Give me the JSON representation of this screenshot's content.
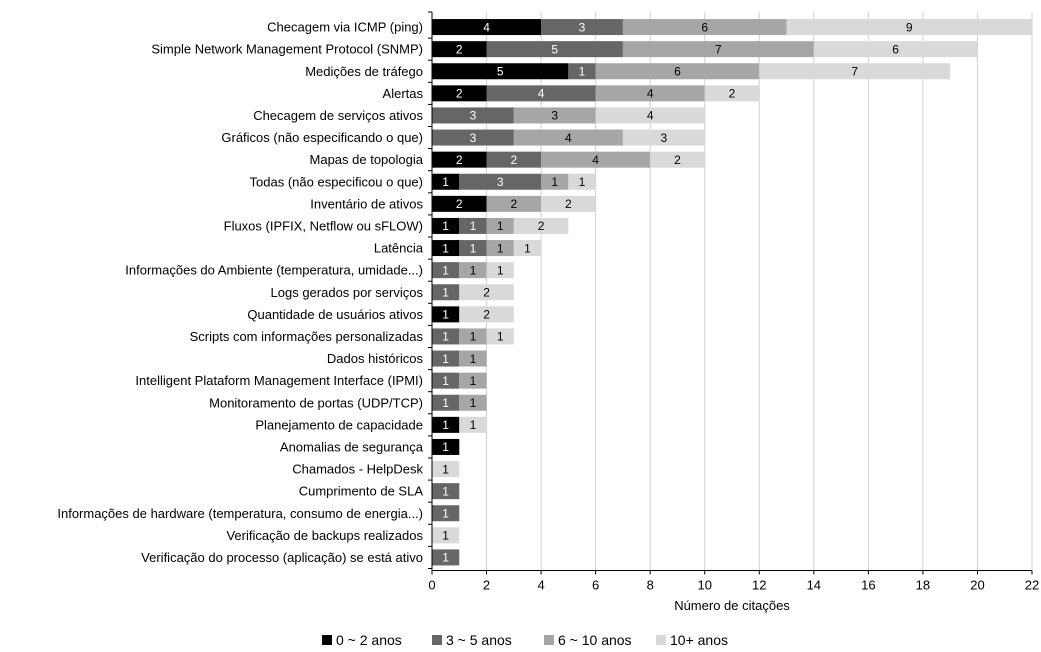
{
  "chart_data": {
    "type": "bar",
    "orientation": "horizontal",
    "stacked": true,
    "title": "",
    "xlabel": "Número de citações",
    "ylabel": "",
    "xlim": [
      0,
      22
    ],
    "xticks": [
      0,
      2,
      4,
      6,
      8,
      10,
      12,
      14,
      16,
      18,
      20,
      22
    ],
    "grid": "vertical",
    "legend_position": "bottom",
    "categories": [
      "Checagem via ICMP (ping)",
      "Simple Network Management Protocol (SNMP)",
      "Medições de tráfego",
      "Alertas",
      "Checagem de serviços ativos",
      "Gráficos (não especificando o que)",
      "Mapas de topologia",
      "Todas (não especificou o que)",
      "Inventário de ativos",
      "Fluxos (IPFIX, Netflow ou sFLOW)",
      "Latência",
      "Informações do Ambiente (temperatura, umidade...)",
      "Logs gerados por serviços",
      "Quantidade de usuários ativos",
      "Scripts com informações personalizadas",
      "Dados históricos",
      "Intelligent Plataform Management Interface (IPMI)",
      "Monitoramento de portas (UDP/TCP)",
      "Planejamento de capacidade",
      "Anomalias de segurança",
      "Chamados - HelpDesk",
      "Cumprimento de SLA",
      "Informações de hardware (temperatura, consumo de energia...)",
      "Verificação de backups realizados",
      "Verificação do processo (aplicação) se está ativo"
    ],
    "series": [
      {
        "name": "0 ~ 2 anos",
        "color": "#000000",
        "label_color": "#ffffff",
        "values": [
          4,
          2,
          5,
          2,
          0,
          0,
          2,
          1,
          2,
          1,
          1,
          0,
          0,
          1,
          0,
          0,
          0,
          0,
          1,
          1,
          0,
          0,
          0,
          0,
          0
        ]
      },
      {
        "name": "3 ~ 5 anos",
        "color": "#666666",
        "label_color": "#ffffff",
        "values": [
          3,
          5,
          1,
          4,
          3,
          3,
          2,
          3,
          0,
          1,
          1,
          1,
          1,
          0,
          1,
          1,
          1,
          1,
          0,
          0,
          0,
          1,
          1,
          0,
          1
        ]
      },
      {
        "name": "6 ~ 10 anos",
        "color": "#a6a6a6",
        "label_color": "#000000",
        "values": [
          6,
          7,
          6,
          4,
          3,
          4,
          4,
          1,
          2,
          1,
          1,
          1,
          0,
          0,
          1,
          1,
          1,
          1,
          0,
          0,
          0,
          0,
          0,
          0,
          0
        ]
      },
      {
        "name": "10+ anos",
        "color": "#d9d9d9",
        "label_color": "#000000",
        "values": [
          9,
          6,
          7,
          2,
          4,
          3,
          2,
          1,
          2,
          2,
          1,
          1,
          2,
          2,
          1,
          0,
          0,
          0,
          1,
          0,
          1,
          0,
          0,
          1,
          0
        ]
      }
    ]
  }
}
